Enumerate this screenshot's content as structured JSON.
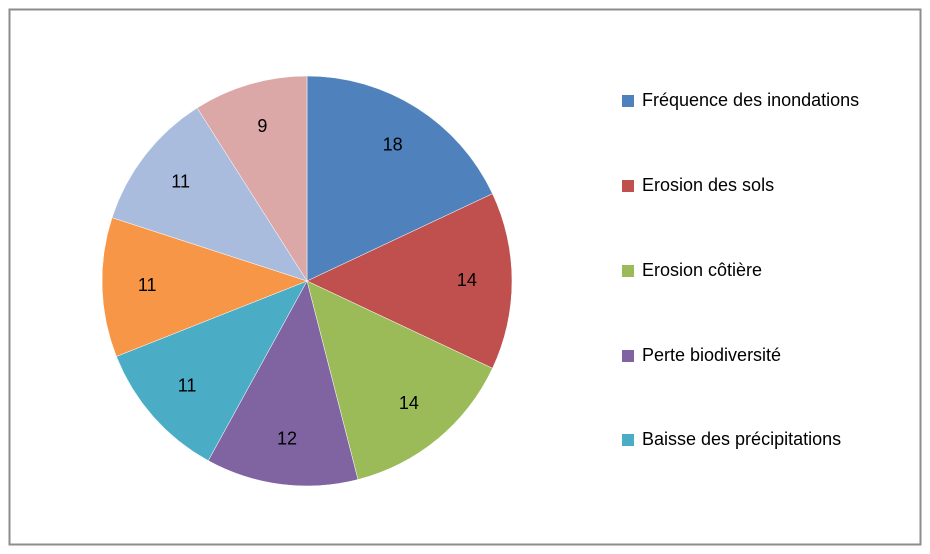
{
  "chart_data": {
    "type": "pie",
    "categories": [
      "Fréquence des inondations",
      "Erosion des sols",
      "Erosion côtière",
      "Perte biodiversité",
      "Baisse des précipitations",
      null,
      null,
      null
    ],
    "values": [
      18,
      14,
      14,
      12,
      11,
      11,
      11,
      9
    ],
    "colors": [
      "#4f81bd",
      "#c0504d",
      "#9bbb59",
      "#8064a2",
      "#4bacc6",
      "#f79646",
      "#a9bcde",
      "#dca7a7"
    ],
    "legend": "right"
  }
}
